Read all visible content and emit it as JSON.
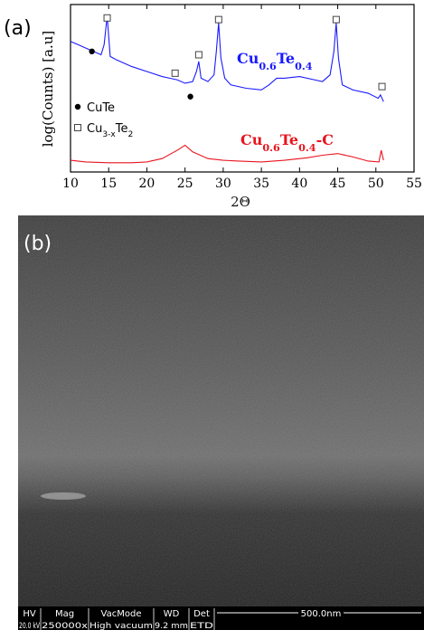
{
  "panel_a": {
    "label": "(a)"
  },
  "chart_data": {
    "type": "line",
    "xlabel": "2Θ",
    "ylabel": "log(Counts) [a.u]",
    "xlim": [
      10,
      55
    ],
    "xticks": [
      10,
      15,
      20,
      25,
      30,
      35,
      40,
      45,
      50,
      55
    ],
    "ylim": [
      0,
      10
    ],
    "series": [
      {
        "name": [
          "Cu",
          "0.6",
          "Te",
          "0.4"
        ],
        "color": "#1a1aff",
        "x": [
          10,
          11,
          12,
          13,
          14,
          14.4,
          14.8,
          15.2,
          16,
          18,
          20,
          22,
          23,
          24,
          25,
          26,
          26.5,
          26.8,
          27.1,
          28,
          28.8,
          29.1,
          29.4,
          29.7,
          30.2,
          31,
          33,
          35,
          36,
          37,
          38,
          40,
          42,
          43,
          44,
          44.5,
          44.8,
          45.1,
          45.6,
          47,
          49,
          50.3,
          50.6,
          50.9,
          51
        ],
        "values": [
          7.8,
          7.6,
          7.4,
          7.2,
          7.0,
          7.6,
          9.3,
          6.9,
          6.7,
          6.3,
          6.0,
          5.7,
          5.6,
          5.5,
          5.3,
          5.4,
          6.0,
          6.6,
          5.6,
          5.4,
          5.8,
          7.2,
          8.9,
          6.8,
          5.6,
          5.2,
          5.0,
          4.9,
          5.2,
          5.6,
          5.6,
          5.7,
          5.5,
          5.4,
          5.8,
          7.2,
          8.9,
          6.8,
          5.2,
          4.9,
          4.7,
          4.4,
          4.6,
          4.3,
          4.2
        ]
      },
      {
        "name": [
          "Cu",
          "0.6",
          "Te",
          "0.4",
          "-C"
        ],
        "color": "#e8141e",
        "x": [
          10,
          12,
          15,
          18,
          20,
          22,
          24,
          25,
          26,
          28,
          30,
          32,
          35,
          38,
          41,
          43,
          45,
          47,
          49,
          50.4,
          50.7,
          51
        ],
        "values": [
          0.7,
          0.6,
          0.55,
          0.55,
          0.6,
          0.8,
          1.3,
          1.6,
          1.2,
          0.8,
          0.7,
          0.65,
          0.6,
          0.7,
          0.85,
          1.0,
          1.1,
          0.9,
          0.65,
          0.6,
          1.3,
          0.7
        ]
      }
    ],
    "phases": [
      {
        "name": [
          "CuTe"
        ],
        "marker": "circle",
        "x": [
          12.8,
          25.7
        ],
        "y": [
          7.2,
          4.5
        ]
      },
      {
        "name": [
          "Cu",
          "3-x",
          "Te",
          "2"
        ],
        "marker": "square",
        "x": [
          14.8,
          23.7,
          26.8,
          29.4,
          44.8,
          50.8
        ],
        "y": [
          9.2,
          5.9,
          7.0,
          9.1,
          9.1,
          5.1
        ]
      }
    ]
  },
  "panel_b": {
    "label": "(b)",
    "info_bar": {
      "headers": [
        "HV",
        "Mag",
        "VacMode",
        "WD",
        "Det"
      ],
      "values": [
        "20.0 kV",
        "250000x",
        "High vacuum",
        "9.2 mm",
        "ETD"
      ],
      "scale": "500.0nm"
    }
  }
}
